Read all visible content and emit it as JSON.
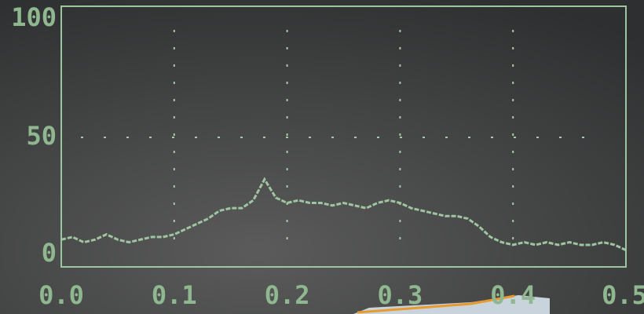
{
  "chart_data": {
    "type": "line",
    "x": [
      0,
      0.01,
      0.02,
      0.03,
      0.04,
      0.05,
      0.06,
      0.07,
      0.08,
      0.09,
      0.1,
      0.11,
      0.12,
      0.13,
      0.14,
      0.15,
      0.16,
      0.17,
      0.18,
      0.19,
      0.2,
      0.21,
      0.22,
      0.23,
      0.24,
      0.25,
      0.26,
      0.27,
      0.28,
      0.29,
      0.3,
      0.31,
      0.32,
      0.33,
      0.34,
      0.35,
      0.36,
      0.37,
      0.38,
      0.39,
      0.4,
      0.41,
      0.42,
      0.43,
      0.44,
      0.45,
      0.46,
      0.47,
      0.48,
      0.49,
      0.5
    ],
    "series": [
      {
        "color": "#9fc4a0",
        "values": [
          11,
          12,
          10,
          11,
          13,
          11,
          10,
          11,
          12,
          12,
          13,
          15,
          17,
          19,
          22,
          23,
          23,
          26,
          34,
          27,
          25,
          26,
          25,
          25,
          24,
          25,
          24,
          23,
          25,
          26,
          25,
          23,
          22,
          21,
          20,
          20,
          19,
          16,
          12,
          10,
          9,
          10,
          9,
          10,
          9,
          10,
          9,
          9,
          10,
          9,
          7
        ]
      }
    ],
    "xlim": [
      0,
      0.5
    ],
    "xticks": [
      {
        "value": 0,
        "label": "0.0"
      },
      0.1,
      0.2,
      0.3,
      0.4,
      0.5
    ],
    "ylim": [
      0,
      100
    ],
    "yticks": [
      0,
      50,
      100
    ],
    "grid": true
  }
}
